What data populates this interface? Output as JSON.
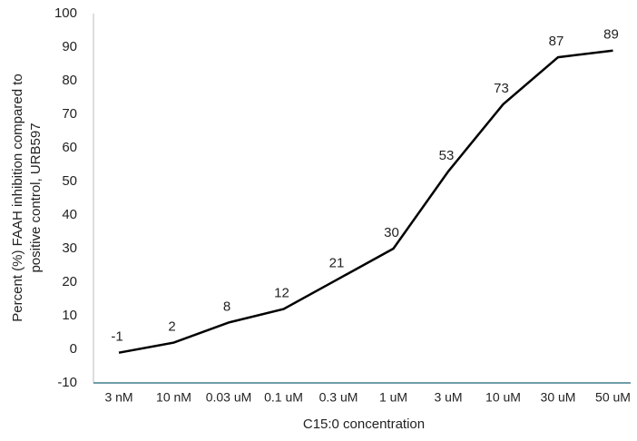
{
  "chart_data": {
    "type": "line",
    "y_label": [
      "Percent (%) FAAH inhibition compared to",
      "positive control, URB597"
    ],
    "x_label": "C15:0 concentration",
    "categories": [
      "3 nM",
      "10 nM",
      "0.03 uM",
      "0.1 uM",
      "0.3 uM",
      "1 uM",
      "3 uM",
      "10 uM",
      "30 uM",
      "50 uM"
    ],
    "values": [
      -1,
      2,
      8,
      12,
      21,
      30,
      53,
      73,
      87,
      89
    ],
    "color": "#000000",
    "ylim": [
      -10,
      100
    ],
    "yticks": [
      -10,
      0,
      10,
      20,
      30,
      40,
      50,
      60,
      70,
      80,
      90,
      100
    ],
    "grid": false
  }
}
